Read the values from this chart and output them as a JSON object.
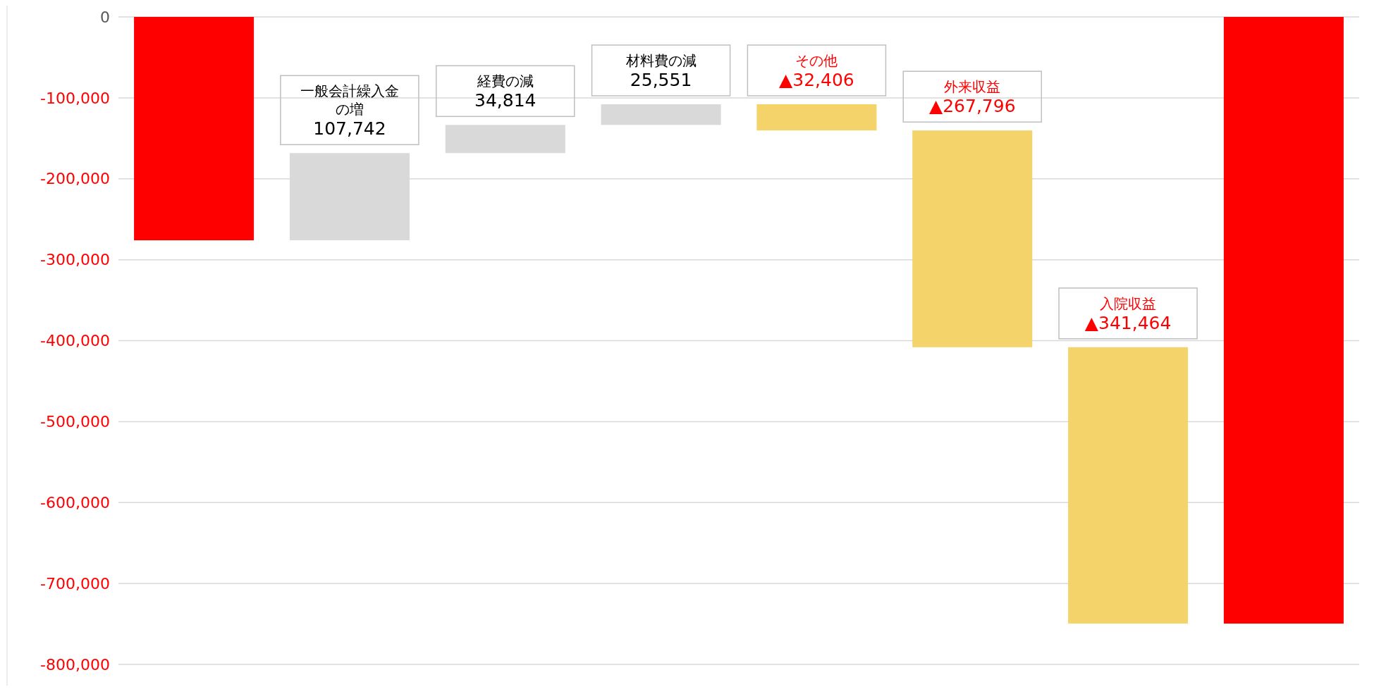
{
  "chart_data": {
    "type": "bar",
    "categories": [
      null,
      "一般会計繰入金の増",
      "経費の減",
      "材料費の減",
      "その他",
      "外来収益",
      "入院収益",
      null
    ],
    "values": [
      -276000,
      107742,
      34814,
      25551,
      -32406,
      -267796,
      -341464,
      -749559
    ],
    "base": [
      0,
      -276000,
      -168258,
      -133444,
      -107893,
      -140299,
      -408095,
      0
    ],
    "colors": [
      "#ff0000",
      "#d9d9d9",
      "#d9d9d9",
      "#d9d9d9",
      "#f5d36b",
      "#f5d36b",
      "#f5d36b",
      "#ff0000"
    ],
    "value_labels": [
      null,
      "107,742",
      "34,814",
      "25,551",
      "▲32,406",
      "▲267,796",
      "▲341,464",
      null
    ],
    "ylim": [
      -800000,
      0
    ],
    "yticks": [
      0,
      {
        "value": -100000,
        "label": "-100,000"
      },
      {
        "value": -200000,
        "label": "-200,000"
      },
      {
        "value": -300000,
        "label": "-300,000"
      },
      {
        "value": -400000,
        "label": "-400,000"
      },
      {
        "value": -500000,
        "label": "-500,000"
      },
      {
        "value": -600000,
        "label": "-600,000"
      },
      {
        "value": -700000,
        "label": "-700,000"
      },
      {
        "value": -800000,
        "label": "-800,000"
      }
    ],
    "grid": "y"
  }
}
